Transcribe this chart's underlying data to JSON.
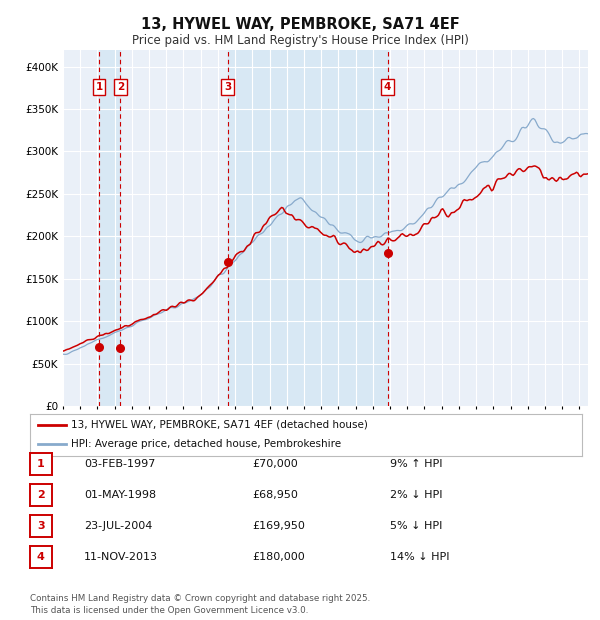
{
  "title": "13, HYWEL WAY, PEMBROKE, SA71 4EF",
  "subtitle": "Price paid vs. HM Land Registry's House Price Index (HPI)",
  "legend_property": "13, HYWEL WAY, PEMBROKE, SA71 4EF (detached house)",
  "legend_hpi": "HPI: Average price, detached house, Pembrokeshire",
  "footer": "Contains HM Land Registry data © Crown copyright and database right 2025.\nThis data is licensed under the Open Government Licence v3.0.",
  "property_color": "#cc0000",
  "hpi_color": "#88aacc",
  "ylim": [
    0,
    420000
  ],
  "yticks": [
    0,
    50000,
    100000,
    150000,
    200000,
    250000,
    300000,
    350000,
    400000
  ],
  "ytick_labels": [
    "£0",
    "£50K",
    "£100K",
    "£150K",
    "£200K",
    "£250K",
    "£300K",
    "£350K",
    "£400K"
  ],
  "sales": [
    {
      "num": 1,
      "date": "03-FEB-1997",
      "price": 70000,
      "pct": "9%",
      "dir": "↑"
    },
    {
      "num": 2,
      "date": "01-MAY-1998",
      "price": 68950,
      "pct": "2%",
      "dir": "↓"
    },
    {
      "num": 3,
      "date": "23-JUL-2004",
      "price": 169950,
      "pct": "5%",
      "dir": "↓"
    },
    {
      "num": 4,
      "date": "11-NOV-2013",
      "price": 180000,
      "pct": "14%",
      "dir": "↓"
    }
  ],
  "sale_years": [
    1997.09,
    1998.33,
    2004.56,
    2013.86
  ],
  "sale_prices": [
    70000,
    68950,
    169950,
    180000
  ],
  "background_color": "#ffffff",
  "plot_bg_color": "#eaf0f8",
  "grid_color": "#ffffff",
  "vline_color": "#cc0000",
  "shade_color": "#d8e8f4"
}
